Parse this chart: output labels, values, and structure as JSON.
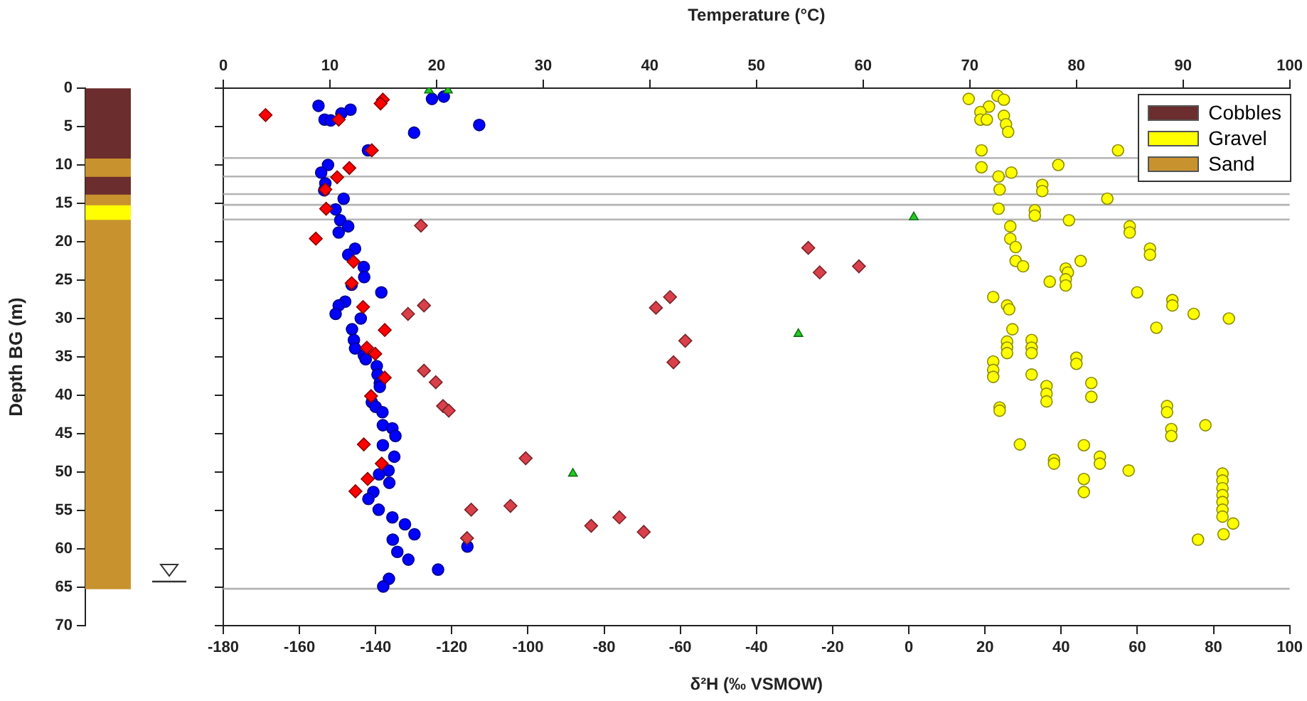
{
  "chart_data": [
    {
      "type": "bar",
      "stacked": true,
      "categories": [
        null
      ],
      "ylabel": "Depth BG (m)",
      "ylim": [
        70,
        0
      ],
      "yticks": [
        0,
        5,
        10,
        15,
        20,
        25,
        30,
        35,
        40,
        45,
        50,
        55,
        60,
        65,
        70
      ],
      "tick_labels": "y",
      "legend": "top right",
      "series": [
        {
          "color": "#6b2d2d",
          "values": [
            9.1
          ]
        },
        {
          "color": "#c8922e",
          "values": [
            2.4
          ]
        },
        {
          "name": "Cobbles",
          "color": "#6b2d2d",
          "values": [
            2.3
          ]
        },
        {
          "color": "#c8922e",
          "values": [
            1.4
          ]
        },
        {
          "name": "Gravel",
          "color": "#ffff00",
          "values": [
            1.9
          ]
        },
        {
          "name": "Sand",
          "color": "#c8922e",
          "values": [
            48.1
          ]
        }
      ]
    },
    {
      "type": "scatter",
      "xlabel": "δ²H (‰ VSMOW)",
      "x2label": "Temperature (°C)",
      "xlim": [
        -180,
        100
      ],
      "xticks": [
        -180,
        -160,
        -140,
        -120,
        -100,
        -80,
        -60,
        -40,
        -20,
        0,
        20,
        40,
        60,
        80,
        100
      ],
      "x2lim": [
        0,
        100
      ],
      "x2ticks": [
        0,
        10,
        20,
        30,
        40,
        50,
        60,
        70,
        80,
        90,
        100
      ],
      "ylim": [
        70,
        0
      ],
      "yticks": [
        0,
        5,
        10,
        15,
        20,
        25,
        30,
        35,
        40,
        45,
        50,
        55,
        60,
        65,
        70
      ],
      "tick_labels": "x",
      "legend": false,
      "grid": false,
      "ref_lines": [
        {
          "axis": "y",
          "value": 9.1,
          "color": "#b4b4b4"
        },
        {
          "axis": "y",
          "value": 11.5,
          "color": "#b4b4b4"
        },
        {
          "axis": "y",
          "value": 13.8,
          "color": "#b4b4b4"
        },
        {
          "axis": "y",
          "value": 15.2,
          "color": "#b4b4b4"
        },
        {
          "axis": "y",
          "value": 17.1,
          "color": "#b4b4b4"
        },
        {
          "axis": "y",
          "value": 65.2,
          "color": "#b4b4b4"
        }
      ],
      "series": [
        {
          "color": "#0000ff",
          "marker": "circle",
          "x": [
            -155,
            -146.6,
            -149,
            -153.4,
            -151.8,
            -125.2,
            -122.1,
            -129.9,
            -112.8,
            -142,
            -152.5,
            -154.3,
            -153.2,
            -153.5,
            -148.4,
            -150.5,
            -149.3,
            -147.2,
            -149.7,
            -145.4,
            -147.2,
            -143.1,
            -143,
            -146.3,
            -138.5,
            -148,
            -149.7,
            -150.5,
            -143.9,
            -146.2,
            -145.7,
            -145.4,
            -143.1,
            -142.6,
            -139.7,
            -139.5,
            -138.9,
            -138.9,
            -141,
            -140,
            -138.2,
            -138.1,
            -135.6,
            -134.8,
            -138.1,
            -135.1,
            -136.6,
            -139.1,
            -136.4,
            -140.6,
            -141.9,
            -139.2,
            -135.6,
            -132.3,
            -129.8,
            -135.5,
            -134.3,
            -131.4,
            -123.6,
            -115.9,
            -136.5,
            -138
          ],
          "values": [
            2.3,
            2.8,
            3.3,
            4.1,
            4.2,
            1.4,
            1.1,
            5.8,
            4.8,
            8.1,
            10,
            11,
            12.4,
            13.3,
            14.4,
            15.8,
            17.2,
            18,
            18.8,
            20.9,
            21.7,
            23.3,
            24.6,
            25.6,
            26.6,
            27.8,
            28.3,
            29.4,
            30,
            31.4,
            32.8,
            33.9,
            34.8,
            35.3,
            36.2,
            37.3,
            38.4,
            38.9,
            40.9,
            41.5,
            42.2,
            43.9,
            44.3,
            45.3,
            46.5,
            48,
            49.8,
            50.3,
            51.4,
            52.6,
            53.5,
            54.9,
            55.9,
            56.8,
            58.1,
            58.8,
            60.4,
            61.4,
            62.7,
            59.7,
            63.9,
            64.9
          ]
        },
        {
          "color": "#ff0000",
          "marker": "diamond",
          "x": [
            -138.1,
            -138.7,
            -168.9,
            -149.7,
            -141,
            -146.9,
            -150.1,
            -153.2,
            -153,
            -155.7,
            -145.8,
            -146.3,
            -143.3,
            -137.6,
            -142.3,
            -140.1,
            -137.6,
            -141.2,
            -143.1,
            -138.4,
            -142.1,
            -145.3
          ],
          "values": [
            1.5,
            2,
            3.5,
            4.1,
            8.1,
            10.4,
            11.6,
            13.2,
            15.7,
            19.6,
            22.6,
            25.4,
            28.5,
            31.5,
            33.8,
            34.6,
            37.7,
            40.1,
            46.4,
            48.9,
            50.9,
            52.5
          ]
        },
        {
          "color": "#d9404a",
          "marker": "diamond",
          "x": [
            -128.1,
            -127.3,
            -131.5,
            -127.3,
            -124.2,
            -122.3,
            -120.8,
            -100.6,
            -114.9,
            -104.6,
            -83.4,
            -116,
            -26.4,
            -23.4,
            -13.1,
            -62.7,
            -66.4,
            -58.7,
            -61.8,
            -76,
            -69.6
          ],
          "values": [
            17.9,
            28.3,
            29.4,
            36.8,
            38.3,
            41.4,
            42,
            48.2,
            54.9,
            54.4,
            57,
            58.6,
            20.8,
            24,
            23.2,
            27.2,
            28.6,
            32.9,
            35.7,
            55.9,
            57.8
          ]
        },
        {
          "color": "#22cc22",
          "marker": "triangle",
          "x": [
            -126,
            -121,
            1.3,
            -29,
            -88.2
          ],
          "values": [
            0.3,
            0.3,
            16.8,
            32,
            50.2
          ]
        },
        {
          "color": "#ffff00",
          "marker": "circle",
          "axis": "x2",
          "x": [
            69.9,
            72.6,
            73.2,
            71.8,
            71,
            71,
            71.6,
            73.2,
            73.4,
            73.6,
            71.1,
            83.9,
            71.1,
            78.3,
            73.9,
            72.7,
            72.8,
            76.8,
            76.8,
            82.9,
            72.7,
            76.1,
            76.1,
            79.3,
            73.8,
            85,
            85,
            73.8,
            74.3,
            86.9,
            86.9,
            74.3,
            75,
            80.4,
            79,
            79.2,
            79,
            79,
            77.5,
            85.7,
            72.2,
            73.5,
            73.7,
            89,
            89,
            91,
            94.3,
            87.5,
            74,
            73.5,
            73.5,
            73.5,
            75.8,
            75.8,
            75.8,
            72.2,
            80,
            80,
            72.2,
            72.2,
            75.8,
            81.4,
            81.4,
            77.2,
            77.2,
            77.2,
            72.8,
            72.8,
            88.5,
            88.5,
            88.9,
            88.9,
            92.1,
            74.7,
            80.7,
            77.9,
            77.9,
            82.2,
            82.2,
            84.9,
            80.7,
            80.7,
            93.7,
            93.7,
            93.7,
            93.7,
            93.7,
            93.7,
            93.7,
            94.7,
            93.8,
            91.4
          ],
          "values": [
            1.4,
            1,
            1.5,
            2.4,
            3.1,
            4.1,
            4.1,
            3.6,
            4.7,
            5.7,
            8.1,
            8.1,
            10.3,
            10,
            11,
            11.5,
            13.2,
            12.6,
            13.4,
            14.4,
            15.7,
            15.9,
            16.6,
            17.2,
            18,
            18,
            18.8,
            19.6,
            20.7,
            20.9,
            21.7,
            22.5,
            23.2,
            22.5,
            23.5,
            24,
            24.9,
            25.7,
            25.2,
            26.6,
            27.2,
            28.3,
            28.8,
            27.6,
            28.3,
            29.4,
            30,
            31.2,
            31.4,
            33,
            33.8,
            34.5,
            32.8,
            33.8,
            34.5,
            35.6,
            35.1,
            35.9,
            36.7,
            37.6,
            37.3,
            38.4,
            40.2,
            38.8,
            39.8,
            40.8,
            41.6,
            42,
            41.4,
            42.2,
            44.4,
            45.3,
            43.9,
            46.4,
            46.5,
            48.4,
            48.9,
            48,
            48.9,
            49.8,
            50.9,
            52.6,
            50.2,
            51.1,
            52.1,
            53,
            53.9,
            54.9,
            55.8,
            56.7,
            58.1,
            58.8
          ]
        }
      ]
    }
  ]
}
